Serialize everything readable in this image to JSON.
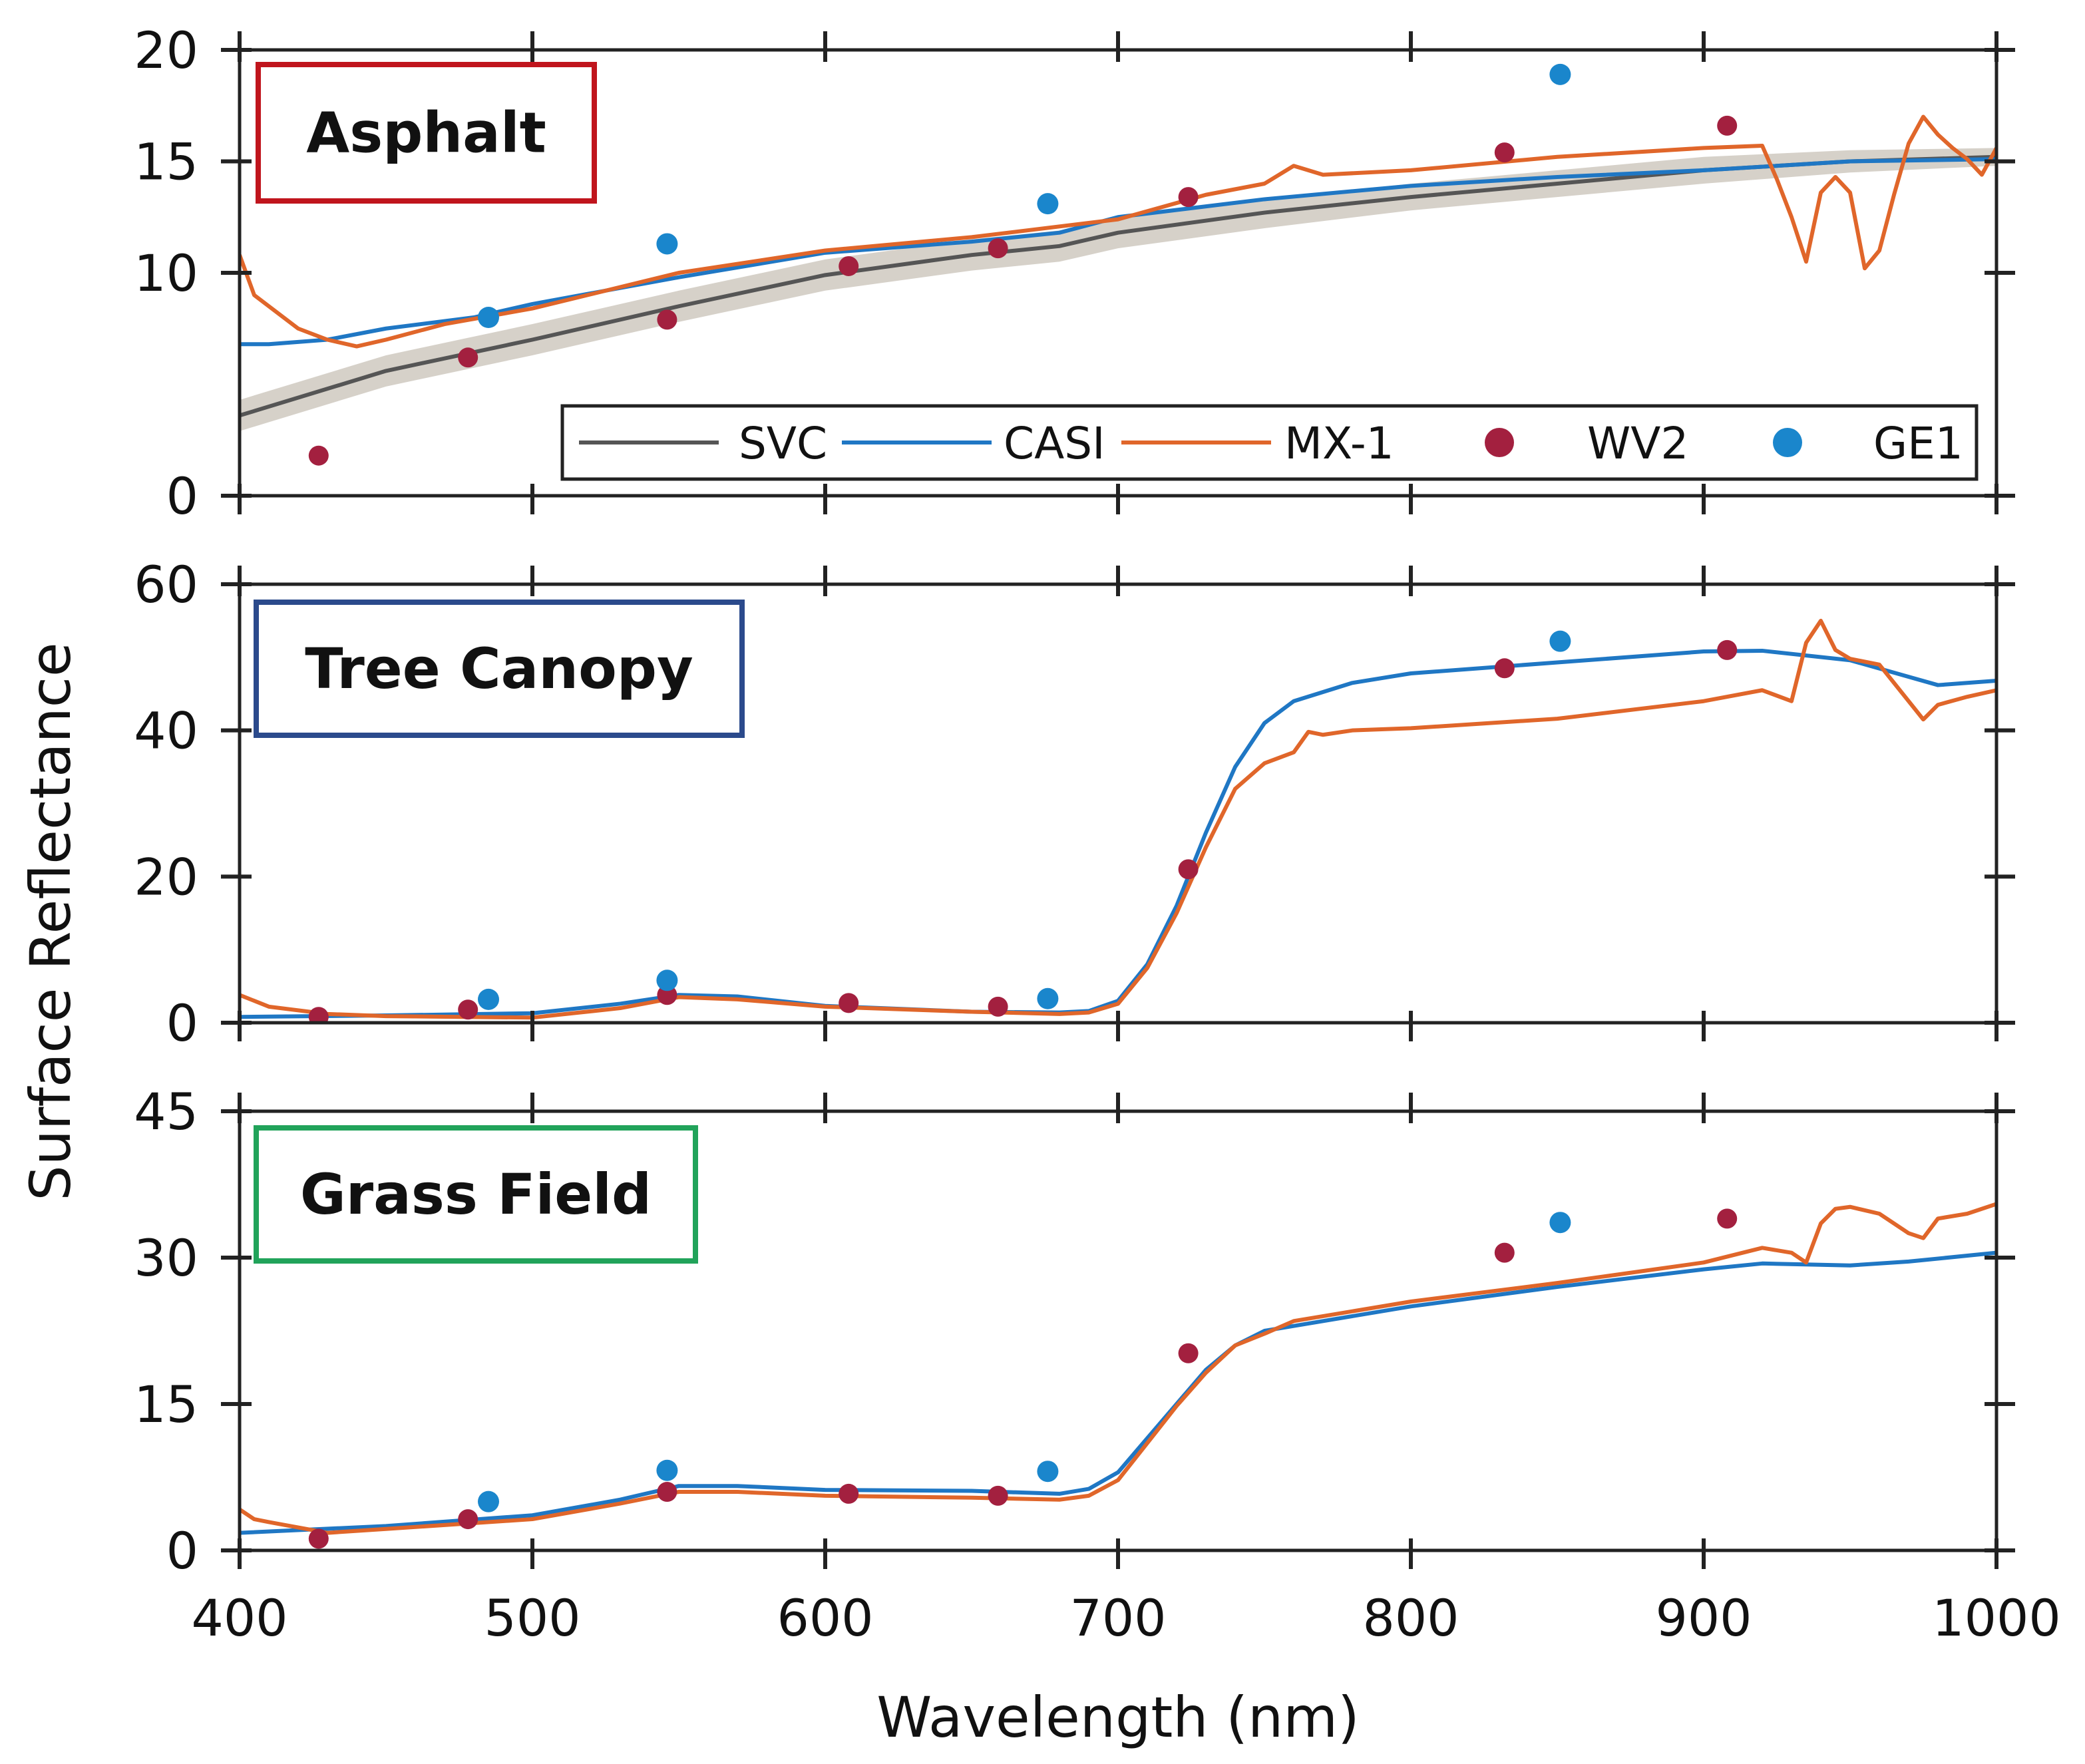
{
  "chart_data": {
    "type": "line",
    "xlabel": "Wavelength (nm)",
    "ylabel": "Surface Reflectance",
    "xlim": [
      400,
      1000
    ],
    "xticks": [
      400,
      500,
      600,
      700,
      800,
      900,
      1000
    ],
    "legend": {
      "placement": "inside top panel, bottom-right",
      "entries": [
        {
          "name": "SVC",
          "kind": "line",
          "color": "#555555"
        },
        {
          "name": "CASI",
          "kind": "line",
          "color": "#1f77c4"
        },
        {
          "name": "MX-1",
          "kind": "line",
          "color": "#e0662a"
        },
        {
          "name": "WV2",
          "kind": "marker",
          "color": "#a3203f"
        },
        {
          "name": "GE1",
          "kind": "marker",
          "color": "#1a86cc"
        }
      ]
    },
    "panels": [
      {
        "label": "Asphalt",
        "label_color": "#c0151d",
        "ylim": [
          0,
          20
        ],
        "yticks": [
          0,
          10,
          15,
          20
        ],
        "series": [
          {
            "name": "SVC",
            "x": [
              400,
              450,
              500,
              550,
              600,
              650,
              680,
              700,
              750,
              800,
              850,
              900,
              950,
              1000
            ],
            "y": [
              3.6,
              5.6,
              7.0,
              8.5,
              9.9,
              10.8,
              11.2,
              11.8,
              12.7,
              13.4,
              14.0,
              14.6,
              15.0,
              15.2
            ],
            "band_lower": [
              2.9,
              4.9,
              6.3,
              7.8,
              9.2,
              10.1,
              10.5,
              11.1,
              12.0,
              12.8,
              13.4,
              14.0,
              14.5,
              14.8
            ],
            "band_upper": [
              4.3,
              6.3,
              7.7,
              9.2,
              10.6,
              11.5,
              11.9,
              12.5,
              13.3,
              14.0,
              14.6,
              15.2,
              15.5,
              15.6
            ]
          },
          {
            "name": "CASI",
            "x": [
              400,
              410,
              430,
              450,
              480,
              500,
              550,
              600,
              650,
              680,
              700,
              750,
              800,
              850,
              900,
              950,
              1000
            ],
            "y": [
              6.8,
              6.8,
              7.0,
              7.5,
              8.0,
              8.6,
              9.8,
              10.9,
              11.4,
              11.8,
              12.5,
              13.3,
              13.9,
              14.3,
              14.6,
              15.0,
              15.1
            ]
          },
          {
            "name": "MX-1",
            "x": [
              400,
              405,
              410,
              420,
              430,
              440,
              450,
              470,
              500,
              550,
              600,
              650,
              700,
              730,
              750,
              760,
              770,
              800,
              850,
              900,
              920,
              925,
              930,
              935,
              940,
              945,
              950,
              955,
              960,
              965,
              970,
              975,
              980,
              985,
              990,
              995,
              1000
            ],
            "y": [
              10.8,
              9.0,
              8.5,
              7.5,
              7.0,
              6.7,
              7.0,
              7.7,
              8.4,
              10.0,
              11.0,
              11.6,
              12.4,
              13.5,
              14.0,
              14.8,
              14.4,
              14.6,
              15.2,
              15.6,
              15.7,
              14.2,
              12.5,
              10.5,
              13.6,
              14.3,
              13.6,
              10.2,
              11.0,
              13.5,
              15.8,
              17.0,
              16.2,
              15.6,
              15.1,
              14.4,
              15.6
            ]
          }
        ],
        "points": [
          {
            "name": "WV2",
            "x": [
              427,
              478,
              546,
              608,
              659,
              724,
              832,
              908
            ],
            "y": [
              1.8,
              6.2,
              7.9,
              10.3,
              11.1,
              13.4,
              15.4,
              16.6
            ]
          },
          {
            "name": "GE1",
            "x": [
              485,
              546,
              676,
              851
            ],
            "y": [
              8.0,
              11.3,
              13.1,
              18.9
            ]
          }
        ]
      },
      {
        "label": "Tree Canopy",
        "label_color": "#2b4a8c",
        "ylim": [
          0,
          60
        ],
        "yticks": [
          0,
          20,
          40,
          60
        ],
        "series": [
          {
            "name": "CASI",
            "x": [
              400,
              450,
              500,
              530,
              550,
              570,
              600,
              650,
              680,
              690,
              700,
              710,
              720,
              730,
              740,
              750,
              760,
              780,
              800,
              850,
              900,
              920,
              950,
              980,
              1000
            ],
            "y": [
              0.8,
              1.0,
              1.3,
              2.6,
              3.8,
              3.6,
              2.3,
              1.5,
              1.4,
              1.6,
              3.0,
              8.0,
              16.0,
              26.0,
              35.0,
              41.0,
              44.0,
              46.5,
              47.8,
              49.3,
              50.8,
              50.9,
              49.6,
              46.2,
              46.8
            ]
          },
          {
            "name": "MX-1",
            "x": [
              400,
              410,
              430,
              450,
              500,
              530,
              550,
              570,
              600,
              650,
              680,
              690,
              700,
              710,
              720,
              730,
              740,
              750,
              760,
              765,
              770,
              780,
              800,
              850,
              900,
              920,
              930,
              935,
              940,
              945,
              950,
              960,
              970,
              975,
              980,
              990,
              1000
            ],
            "y": [
              3.8,
              2.2,
              1.2,
              0.9,
              0.7,
              2.0,
              3.5,
              3.2,
              2.2,
              1.5,
              1.2,
              1.4,
              2.6,
              7.5,
              15.0,
              24.0,
              32.0,
              35.5,
              37.0,
              39.8,
              39.4,
              40.0,
              40.3,
              41.6,
              44.0,
              45.5,
              44.0,
              52.0,
              55.0,
              51.0,
              49.8,
              49.0,
              44.0,
              41.5,
              43.5,
              44.6,
              45.5
            ]
          }
        ],
        "points": [
          {
            "name": "WV2",
            "x": [
              427,
              478,
              546,
              608,
              659,
              724,
              832,
              908
            ],
            "y": [
              0.8,
              1.8,
              3.8,
              2.7,
              2.2,
              21.0,
              48.5,
              51.0
            ]
          },
          {
            "name": "GE1",
            "x": [
              485,
              546,
              676,
              851
            ],
            "y": [
              3.2,
              5.8,
              3.3,
              52.2
            ]
          }
        ]
      },
      {
        "label": "Grass Field",
        "label_color": "#21a35a",
        "ylim": [
          0,
          45
        ],
        "yticks": [
          0,
          15,
          30,
          45
        ],
        "series": [
          {
            "name": "CASI",
            "x": [
              400,
              450,
              500,
              530,
              550,
              570,
              600,
              650,
              680,
              690,
              700,
              710,
              720,
              730,
              740,
              750,
              760,
              800,
              850,
              900,
              920,
              950,
              970,
              1000
            ],
            "y": [
              1.8,
              2.5,
              3.6,
              5.2,
              6.6,
              6.6,
              6.2,
              6.1,
              5.8,
              6.3,
              8.0,
              11.5,
              15.0,
              18.5,
              21.0,
              22.5,
              23.0,
              25.0,
              27.0,
              28.8,
              29.4,
              29.2,
              29.6,
              30.5
            ]
          },
          {
            "name": "MX-1",
            "x": [
              400,
              405,
              410,
              430,
              450,
              500,
              530,
              550,
              570,
              600,
              650,
              680,
              690,
              700,
              710,
              720,
              730,
              740,
              750,
              760,
              800,
              850,
              900,
              920,
              930,
              935,
              940,
              945,
              950,
              960,
              970,
              975,
              980,
              990,
              1000
            ],
            "y": [
              4.2,
              3.2,
              2.9,
              1.8,
              2.2,
              3.2,
              4.8,
              6.0,
              6.0,
              5.6,
              5.4,
              5.2,
              5.6,
              7.2,
              11.0,
              14.8,
              18.2,
              21.0,
              22.2,
              23.5,
              25.5,
              27.4,
              29.5,
              31.0,
              30.5,
              29.5,
              33.5,
              35.0,
              35.2,
              34.5,
              32.5,
              32.0,
              34.0,
              34.5,
              35.5
            ]
          }
        ],
        "points": [
          {
            "name": "WV2",
            "x": [
              427,
              478,
              546,
              608,
              659,
              724,
              832,
              908
            ],
            "y": [
              1.2,
              3.2,
              6.0,
              5.8,
              5.6,
              20.2,
              30.5,
              34.0
            ]
          },
          {
            "name": "GE1",
            "x": [
              485,
              546,
              676,
              851
            ],
            "y": [
              5.0,
              8.2,
              8.1,
              33.6
            ]
          }
        ]
      }
    ]
  }
}
